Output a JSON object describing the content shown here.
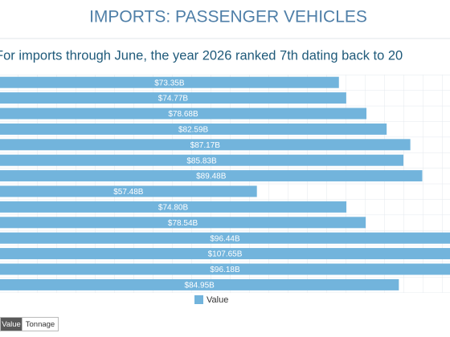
{
  "chart_data": {
    "type": "bar",
    "orientation": "horizontal",
    "title": "IMPORTS: PASSENGER VEHICLES",
    "subtitle": "For imports through June, the year 2026 ranked 7th dating back to 20",
    "categories": [
      null,
      null,
      null,
      null,
      null,
      null,
      null,
      null,
      null,
      null,
      null,
      null,
      null,
      null
    ],
    "series": [
      {
        "name": "Value",
        "color": "#72b4dc",
        "values": [
          73.35,
          74.77,
          78.68,
          82.59,
          87.17,
          85.83,
          89.48,
          57.48,
          74.8,
          78.54,
          96.44,
          107.65,
          96.18,
          84.95
        ],
        "value_labels": [
          "$73.35B",
          "$74.77B",
          "$78.68B",
          "$82.59B",
          "$87.17B",
          "$85.83B",
          "$89.48B",
          "$57.48B",
          "$74.80B",
          "$78.54B",
          "$96.44B",
          "$107.65B",
          "$96.18B",
          "$84.95B"
        ]
      }
    ],
    "xlim": [
      0,
      95
    ],
    "buttons": [
      "Value",
      "Tonnage"
    ]
  }
}
